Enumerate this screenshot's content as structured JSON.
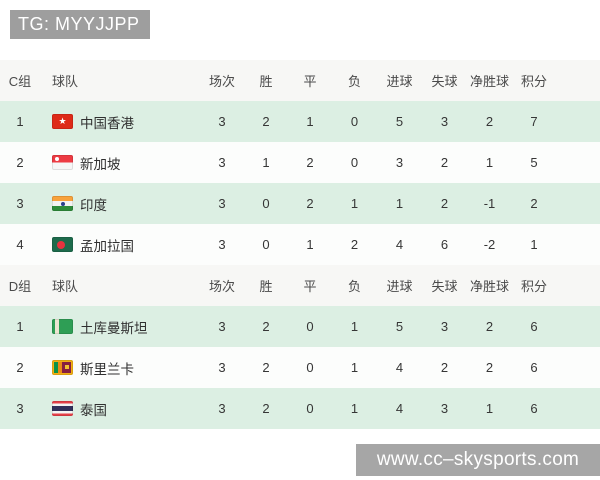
{
  "header": {
    "tg_label": "TG: MYYJJPP"
  },
  "watermark": {
    "url_text": "www.cc–skysports.com"
  },
  "colors": {
    "badge_gray": "#9e9e9e",
    "watermark_gray": "#a6a6a6",
    "row_green": "#dcefe3",
    "header_row_bg": "#f7f7f5",
    "text": "#363636"
  },
  "table": {
    "team_column": "球队",
    "stat_columns": [
      "场次",
      "胜",
      "平",
      "负",
      "进球",
      "失球",
      "净胜球",
      "积分"
    ],
    "groups": [
      {
        "name": "C组",
        "rows": [
          {
            "rank": "1",
            "team": "中国香港",
            "flag": "flag-hong-kong-icon",
            "p": "3",
            "w": "2",
            "d": "1",
            "l": "0",
            "gf": "5",
            "ga": "3",
            "gd": "2",
            "pts": "7"
          },
          {
            "rank": "2",
            "team": "新加坡",
            "flag": "flag-singapore-icon",
            "p": "3",
            "w": "1",
            "d": "2",
            "l": "0",
            "gf": "3",
            "ga": "2",
            "gd": "1",
            "pts": "5"
          },
          {
            "rank": "3",
            "team": "印度",
            "flag": "flag-india-icon",
            "p": "3",
            "w": "0",
            "d": "2",
            "l": "1",
            "gf": "1",
            "ga": "2",
            "gd": "-1",
            "pts": "2"
          },
          {
            "rank": "4",
            "team": "孟加拉国",
            "flag": "flag-bangladesh-icon",
            "p": "3",
            "w": "0",
            "d": "1",
            "l": "2",
            "gf": "4",
            "ga": "6",
            "gd": "-2",
            "pts": "1"
          }
        ]
      },
      {
        "name": "D组",
        "rows": [
          {
            "rank": "1",
            "team": "土库曼斯坦",
            "flag": "flag-turkmenistan-icon",
            "p": "3",
            "w": "2",
            "d": "0",
            "l": "1",
            "gf": "5",
            "ga": "3",
            "gd": "2",
            "pts": "6"
          },
          {
            "rank": "2",
            "team": "斯里兰卡",
            "flag": "flag-sri-lanka-icon",
            "p": "3",
            "w": "2",
            "d": "0",
            "l": "1",
            "gf": "4",
            "ga": "2",
            "gd": "2",
            "pts": "6"
          },
          {
            "rank": "3",
            "team": "泰国",
            "flag": "flag-thailand-icon",
            "p": "3",
            "w": "2",
            "d": "0",
            "l": "1",
            "gf": "4",
            "ga": "3",
            "gd": "1",
            "pts": "6"
          }
        ]
      }
    ]
  }
}
